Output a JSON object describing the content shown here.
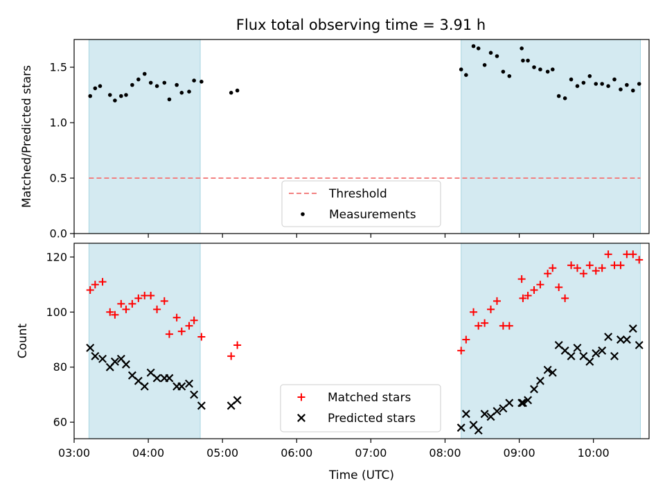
{
  "title": "Flux total observing time = 3.91 h",
  "colors": {
    "span_fill": "#d4eaf1",
    "span_edge": "#a7d4e0",
    "threshold": "#f28080",
    "measurement": "#000000",
    "matched": "#ff0000",
    "predicted": "#000000"
  },
  "chart_data": [
    {
      "type": "scatter",
      "ylabel": "Matched/Predicted stars",
      "xlim": [
        "03:00",
        "10:45"
      ],
      "ylim": [
        0,
        1.75
      ],
      "yticks": [
        0.0,
        0.5,
        1.0,
        1.5
      ],
      "ytick_labels": [
        "0.0",
        "0.5",
        "1.0",
        "1.5"
      ],
      "xtick_labels_visible": false,
      "shaded_spans": [
        [
          "03:12",
          "04:42"
        ],
        [
          "08:13",
          "10:38"
        ]
      ],
      "threshold": {
        "name": "Threshold",
        "value": 0.5,
        "x": [
          "03:12",
          "10:38"
        ],
        "style": "dashed"
      },
      "legend": {
        "placement": "lower-center",
        "entries": [
          "Threshold",
          "Measurements"
        ]
      },
      "series": [
        {
          "name": "Measurements",
          "marker": "dot",
          "points": [
            [
              "03:13",
              1.24
            ],
            [
              "03:17",
              1.31
            ],
            [
              "03:21",
              1.33
            ],
            [
              "03:29",
              1.25
            ],
            [
              "03:33",
              1.2
            ],
            [
              "03:38",
              1.24
            ],
            [
              "03:42",
              1.25
            ],
            [
              "03:47",
              1.34
            ],
            [
              "03:52",
              1.39
            ],
            [
              "03:57",
              1.44
            ],
            [
              "04:02",
              1.36
            ],
            [
              "04:07",
              1.33
            ],
            [
              "04:13",
              1.36
            ],
            [
              "04:17",
              1.21
            ],
            [
              "04:23",
              1.34
            ],
            [
              "04:27",
              1.27
            ],
            [
              "04:33",
              1.28
            ],
            [
              "04:37",
              1.38
            ],
            [
              "04:43",
              1.37
            ],
            [
              "05:07",
              1.27
            ],
            [
              "05:12",
              1.29
            ],
            [
              "08:13",
              1.48
            ],
            [
              "08:17",
              1.43
            ],
            [
              "08:23",
              1.69
            ],
            [
              "08:27",
              1.67
            ],
            [
              "08:32",
              1.52
            ],
            [
              "08:37",
              1.63
            ],
            [
              "08:42",
              1.6
            ],
            [
              "08:47",
              1.46
            ],
            [
              "08:52",
              1.42
            ],
            [
              "09:02",
              1.67
            ],
            [
              "09:03",
              1.56
            ],
            [
              "09:07",
              1.56
            ],
            [
              "09:12",
              1.5
            ],
            [
              "09:17",
              1.48
            ],
            [
              "09:23",
              1.46
            ],
            [
              "09:27",
              1.48
            ],
            [
              "09:32",
              1.24
            ],
            [
              "09:37",
              1.22
            ],
            [
              "09:42",
              1.39
            ],
            [
              "09:47",
              1.33
            ],
            [
              "09:52",
              1.36
            ],
            [
              "09:57",
              1.42
            ],
            [
              "10:02",
              1.35
            ],
            [
              "10:07",
              1.35
            ],
            [
              "10:12",
              1.33
            ],
            [
              "10:17",
              1.39
            ],
            [
              "10:22",
              1.3
            ],
            [
              "10:27",
              1.34
            ],
            [
              "10:32",
              1.29
            ],
            [
              "10:37",
              1.35
            ]
          ]
        }
      ]
    },
    {
      "type": "scatter",
      "xlabel": "Time (UTC)",
      "ylabel": "Count",
      "xlim": [
        "03:00",
        "10:45"
      ],
      "ylim": [
        54,
        125
      ],
      "yticks": [
        60,
        80,
        100,
        120
      ],
      "ytick_labels": [
        "60",
        "80",
        "100",
        "120"
      ],
      "xticks": [
        "03:00",
        "04:00",
        "05:00",
        "06:00",
        "07:00",
        "08:00",
        "09:00",
        "10:00"
      ],
      "xtick_labels": [
        "03:00",
        "04:00",
        "05:00",
        "06:00",
        "07:00",
        "08:00",
        "09:00",
        "10:00"
      ],
      "shaded_spans": [
        [
          "03:12",
          "04:42"
        ],
        [
          "08:13",
          "10:38"
        ]
      ],
      "legend": {
        "placement": "lower-center",
        "entries": [
          "Matched stars",
          "Predicted stars"
        ]
      },
      "series": [
        {
          "name": "Matched stars",
          "marker": "plus",
          "points": [
            [
              "03:13",
              108
            ],
            [
              "03:17",
              110
            ],
            [
              "03:23",
              111
            ],
            [
              "03:29",
              100
            ],
            [
              "03:33",
              99
            ],
            [
              "03:38",
              103
            ],
            [
              "03:42",
              101
            ],
            [
              "03:47",
              103
            ],
            [
              "03:52",
              105
            ],
            [
              "03:57",
              106
            ],
            [
              "04:02",
              106
            ],
            [
              "04:07",
              101
            ],
            [
              "04:13",
              104
            ],
            [
              "04:17",
              92
            ],
            [
              "04:23",
              98
            ],
            [
              "04:27",
              93
            ],
            [
              "04:33",
              95
            ],
            [
              "04:37",
              97
            ],
            [
              "04:43",
              91
            ],
            [
              "05:07",
              84
            ],
            [
              "05:12",
              88
            ],
            [
              "08:13",
              86
            ],
            [
              "08:17",
              90
            ],
            [
              "08:23",
              100
            ],
            [
              "08:27",
              95
            ],
            [
              "08:32",
              96
            ],
            [
              "08:37",
              101
            ],
            [
              "08:42",
              104
            ],
            [
              "08:47",
              95
            ],
            [
              "08:52",
              95
            ],
            [
              "09:02",
              112
            ],
            [
              "09:03",
              105
            ],
            [
              "09:07",
              106
            ],
            [
              "09:12",
              108
            ],
            [
              "09:17",
              110
            ],
            [
              "09:23",
              114
            ],
            [
              "09:27",
              116
            ],
            [
              "09:32",
              109
            ],
            [
              "09:37",
              105
            ],
            [
              "09:42",
              117
            ],
            [
              "09:47",
              116
            ],
            [
              "09:52",
              114
            ],
            [
              "09:57",
              117
            ],
            [
              "10:02",
              115
            ],
            [
              "10:07",
              116
            ],
            [
              "10:12",
              121
            ],
            [
              "10:17",
              117
            ],
            [
              "10:22",
              117
            ],
            [
              "10:27",
              121
            ],
            [
              "10:32",
              121
            ],
            [
              "10:37",
              119
            ]
          ]
        },
        {
          "name": "Predicted stars",
          "marker": "x",
          "points": [
            [
              "03:13",
              87
            ],
            [
              "03:17",
              84
            ],
            [
              "03:23",
              83
            ],
            [
              "03:29",
              80
            ],
            [
              "03:33",
              82
            ],
            [
              "03:38",
              83
            ],
            [
              "03:42",
              81
            ],
            [
              "03:47",
              77
            ],
            [
              "03:52",
              75
            ],
            [
              "03:57",
              73
            ],
            [
              "04:02",
              78
            ],
            [
              "04:07",
              76
            ],
            [
              "04:13",
              76
            ],
            [
              "04:17",
              76
            ],
            [
              "04:23",
              73
            ],
            [
              "04:27",
              73
            ],
            [
              "04:33",
              74
            ],
            [
              "04:37",
              70
            ],
            [
              "04:43",
              66
            ],
            [
              "05:07",
              66
            ],
            [
              "05:12",
              68
            ],
            [
              "08:13",
              58
            ],
            [
              "08:17",
              63
            ],
            [
              "08:23",
              59
            ],
            [
              "08:27",
              57
            ],
            [
              "08:32",
              63
            ],
            [
              "08:37",
              62
            ],
            [
              "08:42",
              64
            ],
            [
              "08:47",
              65
            ],
            [
              "08:52",
              67
            ],
            [
              "09:02",
              67
            ],
            [
              "09:03",
              67
            ],
            [
              "09:07",
              68
            ],
            [
              "09:12",
              72
            ],
            [
              "09:17",
              75
            ],
            [
              "09:23",
              79
            ],
            [
              "09:27",
              78
            ],
            [
              "09:32",
              88
            ],
            [
              "09:37",
              86
            ],
            [
              "09:42",
              84
            ],
            [
              "09:47",
              87
            ],
            [
              "09:52",
              84
            ],
            [
              "09:57",
              82
            ],
            [
              "10:02",
              85
            ],
            [
              "10:07",
              86
            ],
            [
              "10:12",
              91
            ],
            [
              "10:17",
              84
            ],
            [
              "10:22",
              90
            ],
            [
              "10:27",
              90
            ],
            [
              "10:32",
              94
            ],
            [
              "10:37",
              88
            ]
          ]
        }
      ]
    }
  ]
}
